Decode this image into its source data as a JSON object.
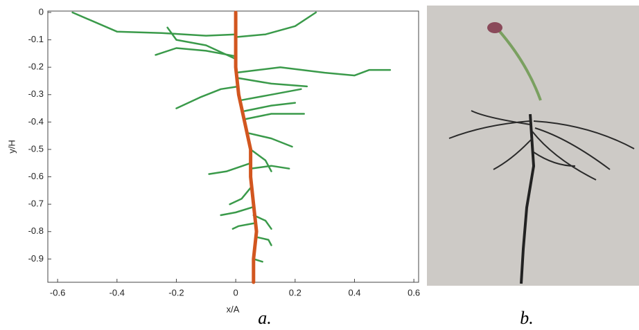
{
  "chart_data": {
    "type": "line",
    "xlabel": "x/A",
    "ylabel": "y/H",
    "xlim": [
      -0.633,
      0.616
    ],
    "ylim": [
      -0.985,
      0.005
    ],
    "xticks": [
      -0.6,
      -0.4,
      -0.2,
      0,
      0.2,
      0.4,
      0.6
    ],
    "yticks": [
      0,
      -0.1,
      -0.2,
      -0.3,
      -0.4,
      -0.5,
      -0.6,
      -0.7,
      -0.8,
      -0.9
    ],
    "series": [
      {
        "color": "#d2561f",
        "x": [
          0,
          0,
          0.01,
          0.03,
          0.05,
          0.05,
          0.06,
          0.07,
          0.06,
          0.06
        ],
        "values": [
          0,
          -0.2,
          -0.3,
          -0.4,
          -0.5,
          -0.6,
          -0.7,
          -0.8,
          -0.9,
          -0.985
        ]
      },
      {
        "color": "#3a9a4a",
        "x": [
          0,
          -0.1,
          -0.25,
          -0.4,
          -0.55
        ],
        "values": [
          -0.08,
          -0.085,
          -0.075,
          -0.07,
          0
        ]
      },
      {
        "color": "#3a9a4a",
        "x": [
          0,
          0.1,
          0.2,
          0.27
        ],
        "values": [
          -0.09,
          -0.08,
          -0.05,
          0
        ]
      },
      {
        "color": "#3a9a4a",
        "x": [
          0,
          -0.1,
          -0.2,
          -0.27
        ],
        "values": [
          -0.16,
          -0.14,
          -0.13,
          -0.155
        ]
      },
      {
        "color": "#3a9a4a",
        "x": [
          0,
          0.15,
          0.3,
          0.4,
          0.45,
          0.52
        ],
        "values": [
          -0.22,
          -0.2,
          -0.22,
          -0.23,
          -0.21,
          -0.21
        ]
      },
      {
        "color": "#3a9a4a",
        "x": [
          0,
          -0.1,
          -0.2,
          -0.23
        ],
        "values": [
          -0.17,
          -0.12,
          -0.1,
          -0.055
        ]
      },
      {
        "color": "#3a9a4a",
        "x": [
          0.01,
          -0.05,
          -0.12,
          -0.2
        ],
        "values": [
          -0.27,
          -0.28,
          -0.31,
          -0.35
        ]
      },
      {
        "color": "#3a9a4a",
        "x": [
          0.01,
          0.12,
          0.24
        ],
        "values": [
          -0.24,
          -0.26,
          -0.27
        ]
      },
      {
        "color": "#3a9a4a",
        "x": [
          0.02,
          0.12,
          0.22
        ],
        "values": [
          -0.32,
          -0.3,
          -0.28
        ]
      },
      {
        "color": "#3a9a4a",
        "x": [
          0.03,
          0.12,
          0.2
        ],
        "values": [
          -0.36,
          -0.34,
          -0.33
        ]
      },
      {
        "color": "#3a9a4a",
        "x": [
          0.03,
          0.12,
          0.23
        ],
        "values": [
          -0.39,
          -0.37,
          -0.37
        ]
      },
      {
        "color": "#3a9a4a",
        "x": [
          0.04,
          0.12,
          0.19
        ],
        "values": [
          -0.44,
          -0.46,
          -0.49
        ]
      },
      {
        "color": "#3a9a4a",
        "x": [
          0.05,
          0.1,
          0.12
        ],
        "values": [
          -0.5,
          -0.54,
          -0.58
        ]
      },
      {
        "color": "#3a9a4a",
        "x": [
          0.05,
          -0.03,
          -0.09
        ],
        "values": [
          -0.55,
          -0.58,
          -0.59
        ]
      },
      {
        "color": "#3a9a4a",
        "x": [
          0.05,
          0.12,
          0.18
        ],
        "values": [
          -0.57,
          -0.56,
          -0.57
        ]
      },
      {
        "color": "#3a9a4a",
        "x": [
          0.05,
          0.02,
          -0.02
        ],
        "values": [
          -0.64,
          -0.68,
          -0.7
        ]
      },
      {
        "color": "#3a9a4a",
        "x": [
          0.06,
          0,
          -0.05
        ],
        "values": [
          -0.71,
          -0.73,
          -0.74
        ]
      },
      {
        "color": "#3a9a4a",
        "x": [
          0.06,
          0.1,
          0.12
        ],
        "values": [
          -0.74,
          -0.76,
          -0.79
        ]
      },
      {
        "color": "#3a9a4a",
        "x": [
          0.06,
          0.01,
          -0.01
        ],
        "values": [
          -0.77,
          -0.78,
          -0.79
        ]
      },
      {
        "color": "#3a9a4a",
        "x": [
          0.07,
          0.11,
          0.12
        ],
        "values": [
          -0.82,
          -0.83,
          -0.85
        ]
      },
      {
        "color": "#3a9a4a",
        "x": [
          0.06,
          0.09
        ],
        "values": [
          -0.9,
          -0.91
        ]
      }
    ]
  },
  "captions": [
    "a.",
    "b."
  ]
}
